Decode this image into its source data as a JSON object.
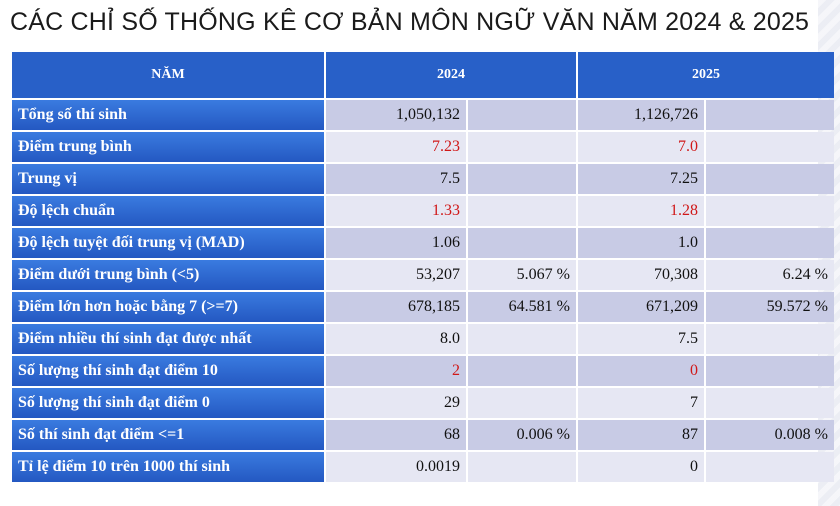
{
  "title": "CÁC CHỈ SỐ THỐNG KÊ CƠ BẢN MÔN NGỮ VĂN NĂM 2024 & 2025",
  "header": {
    "label": "NĂM",
    "year1": "2024",
    "year2": "2025"
  },
  "highlight_color": "#d01818",
  "rows": [
    {
      "label": "Tổng số thí sinh",
      "v2024": "1,050,132",
      "p2024": "",
      "v2025": "1,126,726",
      "p2025": "",
      "red": false
    },
    {
      "label": "Điểm trung bình",
      "v2024": "7.23",
      "p2024": "",
      "v2025": "7.0",
      "p2025": "",
      "red": true
    },
    {
      "label": "Trung vị",
      "v2024": "7.5",
      "p2024": "",
      "v2025": "7.25",
      "p2025": "",
      "red": false
    },
    {
      "label": "Độ lệch chuẩn",
      "v2024": "1.33",
      "p2024": "",
      "v2025": "1.28",
      "p2025": "",
      "red": true
    },
    {
      "label": "Độ lệch tuyệt đối trung vị (MAD)",
      "v2024": "1.06",
      "p2024": "",
      "v2025": "1.0",
      "p2025": "",
      "red": false
    },
    {
      "label": "Điểm dưới trung bình (<5)",
      "v2024": "53,207",
      "p2024": "5.067 %",
      "v2025": "70,308",
      "p2025": "6.24 %",
      "red": false
    },
    {
      "label": "Điểm lớn hơn hoặc bằng 7 (>=7)",
      "v2024": "678,185",
      "p2024": "64.581 %",
      "v2025": "671,209",
      "p2025": "59.572 %",
      "red": false
    },
    {
      "label": "Điểm nhiều thí sinh đạt được nhất",
      "v2024": "8.0",
      "p2024": "",
      "v2025": "7.5",
      "p2025": "",
      "red": false
    },
    {
      "label": "Số lượng thí sinh đạt điểm 10",
      "v2024": "2",
      "p2024": "",
      "v2025": "0",
      "p2025": "",
      "red": true
    },
    {
      "label": "Số lượng thí sinh đạt điểm 0",
      "v2024": "29",
      "p2024": "",
      "v2025": "7",
      "p2025": "",
      "red": false
    },
    {
      "label": "Số thí sinh đạt điểm <=1",
      "v2024": "68",
      "p2024": "0.006 %",
      "v2025": "87",
      "p2025": "0.008 %",
      "red": false
    },
    {
      "label": "Tỉ lệ điểm 10 trên 1000 thí sinh",
      "v2024": "0.0019",
      "p2024": "",
      "v2025": "0",
      "p2025": "",
      "red": false
    }
  ]
}
